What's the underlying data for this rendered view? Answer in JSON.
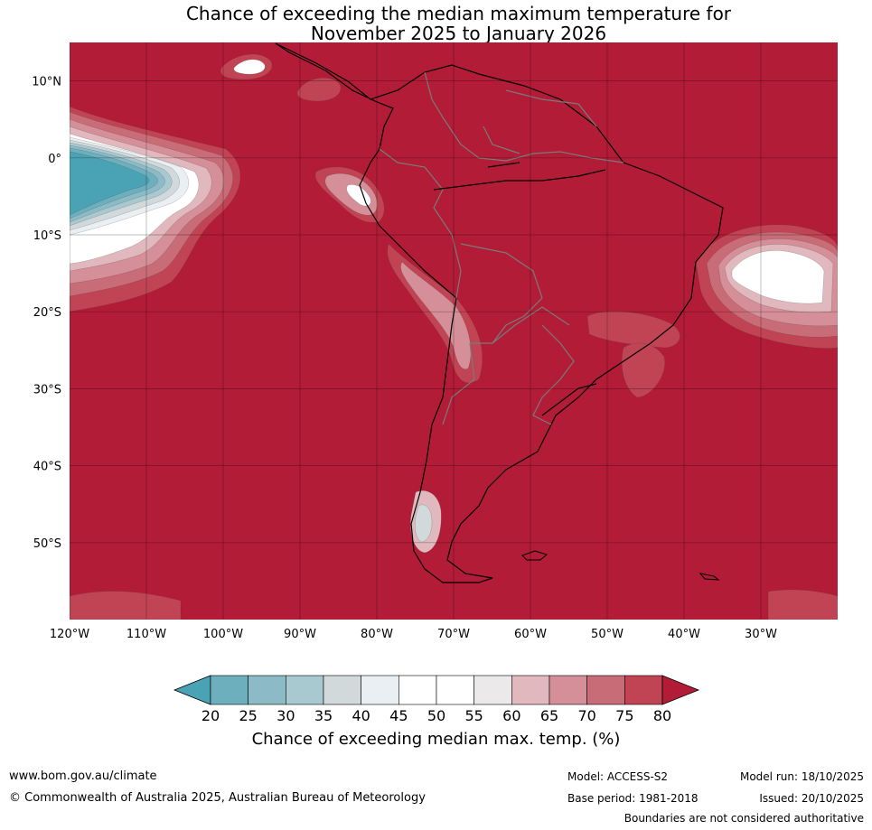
{
  "title": {
    "line1": "Chance of exceeding the median maximum temperature for",
    "line2": "November 2025 to January 2026"
  },
  "map": {
    "lat_labels": [
      "10°N",
      "0°",
      "10°S",
      "20°S",
      "30°S",
      "40°S",
      "50°S"
    ],
    "lon_labels": [
      "120°W",
      "110°W",
      "100°W",
      "90°W",
      "80°W",
      "70°W",
      "60°W",
      "50°W",
      "40°W",
      "30°W"
    ],
    "lat_range": [
      -60,
      15
    ],
    "lon_range": [
      -120,
      -20
    ],
    "dominant_category": "80",
    "colors": {
      "c20": "#4aa3b4",
      "c25": "#6eafbd",
      "c30": "#8cbac6",
      "c35": "#a9c9d0",
      "c40": "#d2d9da",
      "c45": "#e9eff2",
      "c50": "#ffffff",
      "c55": "#ffffff",
      "c60": "#ebe9ea",
      "c65": "#e0b8bd",
      "c70": "#d48f98",
      "c75": "#c86c77",
      "c80": "#c04453",
      "c85": "#b21c37"
    }
  },
  "colorbar": {
    "ticks": [
      "20",
      "25",
      "30",
      "35",
      "40",
      "45",
      "50",
      "55",
      "60",
      "65",
      "70",
      "75",
      "80"
    ],
    "label": "Chance of exceeding median max. temp. (%)"
  },
  "footer": {
    "url": "www.bom.gov.au/climate",
    "copyright": "© Commonwealth of Australia 2025, Australian Bureau of Meteorology",
    "model": "Model: ACCESS-S2",
    "base_period": "Base period: 1981-2018",
    "model_run": "Model run: 18/10/2025",
    "issued": "Issued: 20/10/2025",
    "disclaimer": "Boundaries are not considered authoritative"
  }
}
